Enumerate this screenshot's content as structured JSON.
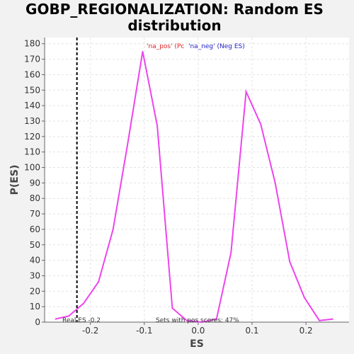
{
  "title_line1": "GOBP_REGIONALIZATION: Random ES",
  "title_line2": "distribution",
  "chart_data": {
    "type": "line",
    "title": "GOBP_REGIONALIZATION: Random ES distribution",
    "xlabel": "ES",
    "ylabel": "P(ES)",
    "xlim": [
      -0.285,
      0.28
    ],
    "ylim": [
      0,
      184
    ],
    "xticks": [
      -0.2,
      -0.1,
      0.0,
      0.1,
      0.2
    ],
    "xtick_labels": [
      "-0.2",
      "-0.1",
      "0.0",
      "0.1",
      "0.2"
    ],
    "yticks": [
      0,
      10,
      20,
      30,
      40,
      50,
      60,
      70,
      80,
      90,
      100,
      110,
      120,
      130,
      140,
      150,
      160,
      170,
      180
    ],
    "grid": true,
    "line_color": "#ee44ee",
    "series": [
      {
        "x": [
          -0.265,
          -0.24,
          -0.213,
          -0.185,
          -0.158,
          -0.131,
          -0.103,
          -0.076,
          -0.048,
          -0.021,
          0.007,
          0.034,
          0.061,
          0.089,
          0.116,
          0.143,
          0.17,
          0.197,
          0.225,
          0.25
        ],
        "values": [
          2,
          4,
          12,
          26,
          60,
          115,
          175,
          127,
          9,
          1,
          0,
          2,
          45,
          149,
          128,
          90,
          39,
          16,
          1,
          2
        ]
      }
    ],
    "real_es": -0.225,
    "real_es_label": "Real ES -0.2",
    "pos_scores_label": "Sets with pos scores: 47%",
    "legend": [
      {
        "label": "'na_pos' (Pc",
        "color": "#dd2222"
      },
      {
        "label": "'na_neg' (Neg ES)",
        "color": "#2222cc"
      }
    ],
    "legend_position": "top-center"
  }
}
